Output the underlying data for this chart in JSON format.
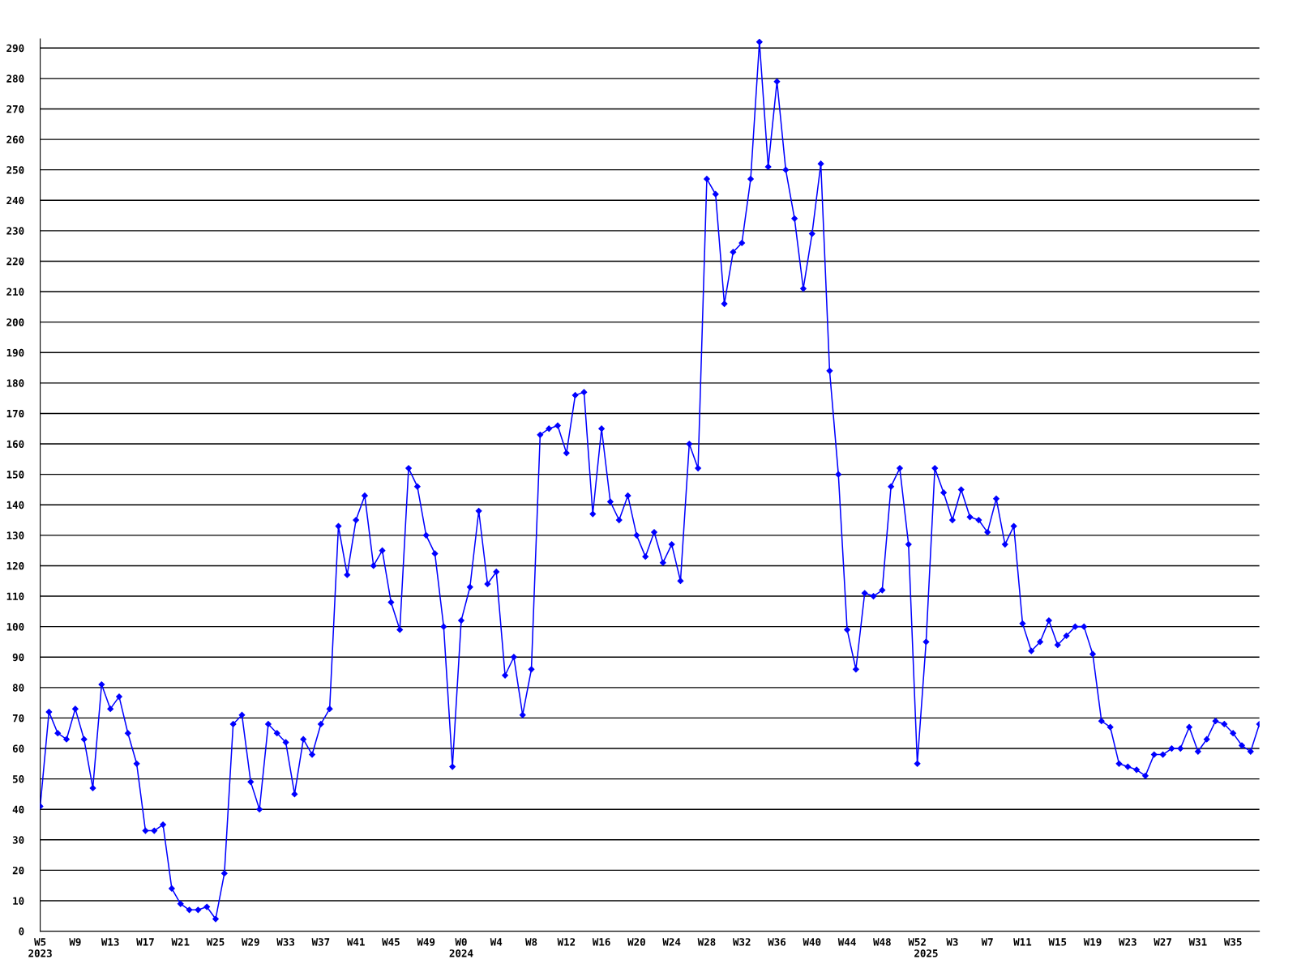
{
  "chart_data": {
    "type": "line",
    "categories": [
      "W5\n2023",
      null,
      null,
      null,
      "W9",
      null,
      null,
      null,
      "W13",
      null,
      null,
      null,
      "W17",
      null,
      null,
      null,
      "W21",
      null,
      null,
      null,
      "W25",
      null,
      null,
      null,
      "W29",
      null,
      null,
      null,
      "W33",
      null,
      null,
      null,
      "W37",
      null,
      null,
      null,
      "W41",
      null,
      null,
      null,
      "W45",
      null,
      null,
      null,
      "W49",
      null,
      null,
      null,
      "W0\n2024",
      null,
      null,
      null,
      "W4",
      null,
      null,
      null,
      "W8",
      null,
      null,
      null,
      "W12",
      null,
      null,
      null,
      "W16",
      null,
      null,
      null,
      "W20",
      null,
      null,
      null,
      "W24",
      null,
      null,
      null,
      "W28",
      null,
      null,
      null,
      "W32",
      null,
      null,
      null,
      "W36",
      null,
      null,
      null,
      "W40",
      null,
      null,
      null,
      "W44",
      null,
      null,
      null,
      "W48",
      null,
      null,
      null,
      "W52",
      "\n2025",
      null,
      null,
      "W3",
      null,
      null,
      null,
      "W7",
      null,
      null,
      null,
      "W11",
      null,
      null,
      null,
      "W15",
      null,
      null,
      null,
      "W19",
      null,
      null,
      null,
      "W23",
      null,
      null,
      null,
      "W27",
      null,
      null,
      null,
      "W31",
      null,
      null,
      null,
      "W35",
      null,
      null,
      null
    ],
    "series": [
      {
        "color": "#0000ff",
        "values": [
          41,
          72,
          65,
          63,
          73,
          63,
          47,
          81,
          73,
          77,
          65,
          55,
          33,
          33,
          35,
          14,
          9,
          7,
          7,
          8,
          4,
          19,
          68,
          71,
          49,
          40,
          68,
          65,
          62,
          45,
          63,
          58,
          68,
          73,
          133,
          117,
          135,
          143,
          120,
          125,
          108,
          99,
          152,
          146,
          130,
          124,
          100,
          54,
          102,
          113,
          138,
          114,
          118,
          84,
          90,
          71,
          86,
          163,
          165,
          166,
          157,
          176,
          177,
          137,
          165,
          141,
          135,
          143,
          130,
          123,
          131,
          121,
          127,
          115,
          160,
          152,
          247,
          242,
          206,
          223,
          226,
          247,
          292,
          251,
          279,
          250,
          234,
          211,
          229,
          252,
          184,
          150,
          99,
          86,
          111,
          110,
          112,
          146,
          152,
          127,
          55,
          95,
          152,
          144,
          135,
          145,
          136,
          135,
          131,
          142,
          127,
          133,
          101,
          92,
          95,
          102,
          94,
          97,
          100,
          100,
          91,
          69,
          67,
          55,
          54,
          53,
          51,
          58,
          58,
          60,
          60,
          67,
          59,
          63,
          69,
          68,
          65,
          61,
          59,
          68
        ]
      }
    ],
    "ylim": [
      0,
      293
    ],
    "yticks": [
      0,
      10,
      20,
      30,
      40,
      50,
      60,
      70,
      80,
      90,
      100,
      110,
      120,
      130,
      140,
      150,
      160,
      170,
      180,
      190,
      200,
      210,
      220,
      230,
      240,
      250,
      260,
      270,
      280,
      290
    ],
    "grid": "y",
    "marker": "diamond",
    "line_style": "solid"
  }
}
